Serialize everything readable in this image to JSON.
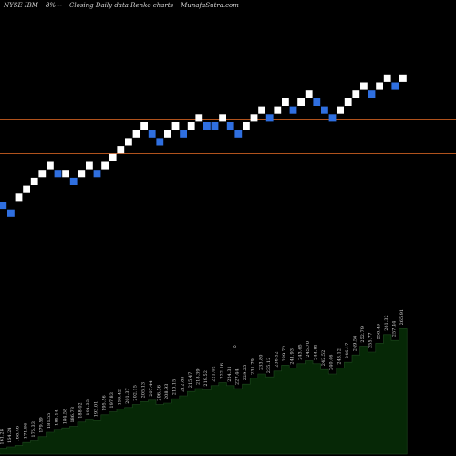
{
  "header": {
    "symbol": "NYSE IBM",
    "change": "8% --",
    "description": "Closing Daily data  Renko  charts",
    "site": "MunafaSutra.com"
  },
  "colors": {
    "background": "#000000",
    "up_brick": "#ffffff",
    "down_brick": "#2f6fe0",
    "resistance_line": "#b0521c",
    "volume_fill": "#062806",
    "volume_outline": "#1e4a1e",
    "label_color": "#dcdcdc"
  },
  "chart_data": {
    "type": "renko",
    "title": "NYSE IBM 8% -- Closing Daily data Renko charts MunafaSutra.com",
    "xlabel": "",
    "ylabel": "",
    "grid": false,
    "brick_levels": [
      0,
      -1,
      1,
      2,
      3,
      4,
      5,
      4,
      4,
      3,
      4,
      5,
      4,
      5,
      6,
      7,
      8,
      9,
      10,
      9,
      8,
      9,
      10,
      9,
      10,
      11,
      10,
      10,
      11,
      10,
      9,
      10,
      11,
      12,
      11,
      12,
      13,
      12,
      13,
      14,
      13,
      12,
      11,
      12,
      13,
      14,
      15,
      14,
      15,
      16,
      15,
      16
    ],
    "brick_directions": [
      "down",
      "down",
      "up",
      "up",
      "up",
      "up",
      "up",
      "down",
      "up",
      "down",
      "up",
      "up",
      "down",
      "up",
      "up",
      "up",
      "up",
      "up",
      "up",
      "down",
      "down",
      "up",
      "up",
      "down",
      "up",
      "up",
      "down",
      "down",
      "up",
      "down",
      "down",
      "up",
      "up",
      "up",
      "down",
      "up",
      "up",
      "down",
      "up",
      "up",
      "down",
      "down",
      "down",
      "up",
      "up",
      "up",
      "up",
      "down",
      "up",
      "up",
      "down",
      "up"
    ],
    "horizontal_lines": [
      "upper-resistance",
      "lower-support"
    ],
    "volume_area": [
      0.04,
      0.05,
      0.06,
      0.08,
      0.09,
      0.12,
      0.15,
      0.17,
      0.18,
      0.19,
      0.22,
      0.24,
      0.23,
      0.27,
      0.29,
      0.31,
      0.32,
      0.34,
      0.36,
      0.37,
      0.34,
      0.35,
      0.38,
      0.4,
      0.43,
      0.45,
      0.44,
      0.47,
      0.49,
      0.47,
      0.45,
      0.48,
      0.52,
      0.55,
      0.53,
      0.57,
      0.61,
      0.59,
      0.62,
      0.64,
      0.62,
      0.58,
      0.55,
      0.59,
      0.63,
      0.68,
      0.74,
      0.7,
      0.76,
      0.82,
      0.78,
      0.86
    ],
    "price_labels": [
      "161.28",
      "164.24",
      "168.46",
      "171.86",
      "175.33",
      "179.59",
      "181.55",
      "185.14",
      "184.58",
      "186.78",
      "188.02",
      "191.33",
      "193.01",
      "195.56",
      "197.83",
      "199.42",
      "201.37",
      "202.15",
      "205.13",
      "207.44",
      "206.36",
      "208.93",
      "210.15",
      "212.85",
      "215.47",
      "218.39",
      "219.52",
      "221.02",
      "222.16",
      "224.31",
      "227.44",
      "229.25",
      "231.79",
      "233.80",
      "235.12",
      "236.52",
      "239.73",
      "241.93",
      "243.65",
      "245.70",
      "244.81",
      "242.52",
      "240.46",
      "243.12",
      "246.17",
      "249.56",
      "252.79",
      "255.77",
      "258.49",
      "261.32",
      "257.44",
      "265.91"
    ],
    "labels_marker": "0"
  }
}
